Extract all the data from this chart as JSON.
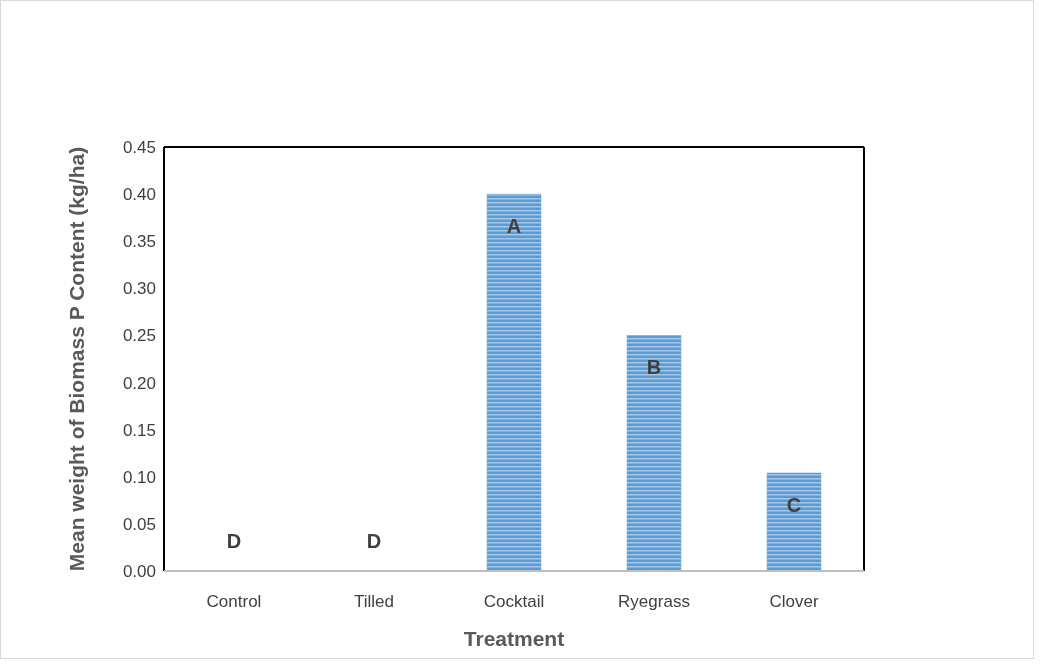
{
  "chart_data": {
    "type": "bar",
    "xlabel": "Treatment",
    "ylabel": "Mean weight of Biomass P Content (kg/ha)",
    "categories": [
      "Control",
      "Tilled",
      "Cocktail",
      "Ryegrass",
      "Clover"
    ],
    "values": [
      0,
      0,
      0.4,
      0.25,
      0.104
    ],
    "color": "#5b9bd5",
    "ylim": [
      0,
      0.45
    ],
    "yticks": [
      {
        "value": 0,
        "label": "0.00"
      },
      {
        "value": 0.05,
        "label": "0.05"
      },
      {
        "value": 0.1,
        "label": "0.10"
      },
      {
        "value": 0.15,
        "label": "0.15"
      },
      {
        "value": 0.2,
        "label": "0.20"
      },
      {
        "value": 0.25,
        "label": "0.25"
      },
      {
        "value": 0.3,
        "label": "0.30"
      },
      {
        "value": 0.35,
        "label": "0.35"
      },
      {
        "value": 0.4,
        "label": "0.40"
      },
      {
        "value": 0.45,
        "label": "0.45"
      }
    ],
    "annotations": [
      "D",
      "D",
      "A",
      "B",
      "C"
    ]
  }
}
